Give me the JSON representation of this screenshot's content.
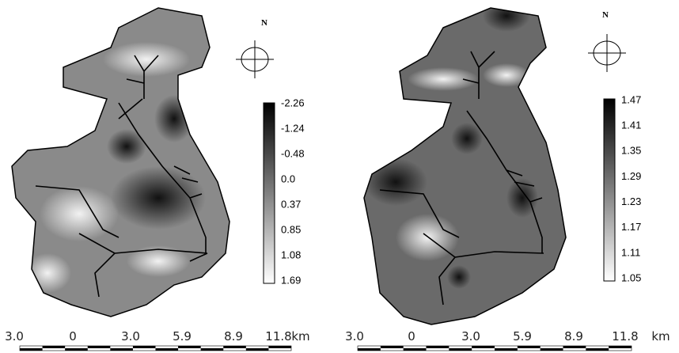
{
  "panels": [
    {
      "north": "N",
      "legend": [
        "-2.26",
        "-1.24",
        "-0.48",
        "0.0",
        "0.37",
        "0.85",
        "1.08",
        "1.69"
      ],
      "scale": {
        "labels": [
          "3.0",
          "0",
          "3.0",
          "5.9",
          "8.9",
          "11.8"
        ],
        "unit": "km"
      }
    },
    {
      "north": "N",
      "legend": [
        "1.47",
        "1.41",
        "1.35",
        "1.29",
        "1.23",
        "1.17",
        "1.11",
        "1.05"
      ],
      "scale": {
        "labels": [
          "3.0",
          "0",
          "3.0",
          "5.9",
          "8.9",
          "11.8"
        ],
        "unit": "km"
      }
    }
  ]
}
